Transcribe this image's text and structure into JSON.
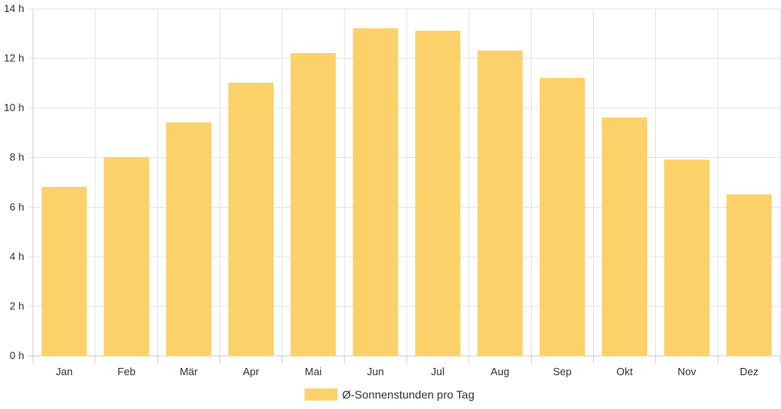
{
  "colors": {
    "bar_fill": "#fdd16a",
    "bar_stroke": "#fcd068",
    "grid": "#e5e5e5",
    "axis": "#cccccc",
    "text": "#333333",
    "background": "#ffffff"
  },
  "chart_data": {
    "type": "bar",
    "categories": [
      "Jan",
      "Feb",
      "Mär",
      "Apr",
      "Mai",
      "Jun",
      "Jul",
      "Aug",
      "Sep",
      "Okt",
      "Nov",
      "Dez"
    ],
    "series": [
      {
        "name": "Ø-Sonnenstunden pro Tag",
        "values": [
          6.8,
          8.0,
          9.4,
          11.0,
          12.2,
          13.2,
          13.1,
          12.3,
          11.2,
          9.6,
          7.9,
          6.5
        ]
      }
    ],
    "yticks": [
      0,
      2,
      4,
      6,
      8,
      10,
      12,
      14
    ],
    "ytick_suffix": " h",
    "ylim": [
      0,
      14
    ],
    "grid": true,
    "legend_position": "bottom-center"
  }
}
